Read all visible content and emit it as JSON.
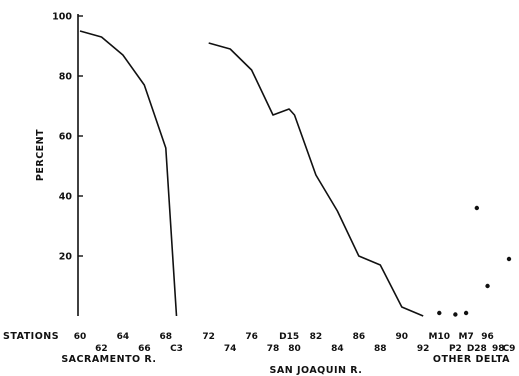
{
  "chart_data": {
    "type": "line",
    "xlabel": "STATIONS",
    "ylabel": "PERCENT",
    "ylim": [
      0,
      100
    ],
    "y_ticks": [
      "100",
      "80",
      "60",
      "40",
      "20"
    ],
    "y_tick_values": [
      100,
      80,
      60,
      40,
      20
    ],
    "x_ticks": [
      {
        "label": "60",
        "station": 60,
        "row": 1
      },
      {
        "label": "62",
        "station": 62,
        "row": 2
      },
      {
        "label": "64",
        "station": 64,
        "row": 1
      },
      {
        "label": "66",
        "station": 66,
        "row": 2
      },
      {
        "label": "68",
        "station": 68,
        "row": 1
      },
      {
        "label": "C3",
        "station": 69,
        "row": 2
      },
      {
        "label": "72",
        "station": 72,
        "row": 1
      },
      {
        "label": "74",
        "station": 74,
        "row": 2
      },
      {
        "label": "76",
        "station": 76,
        "row": 1
      },
      {
        "label": "78",
        "station": 78,
        "row": 2
      },
      {
        "label": "D15",
        "station": 79.5,
        "row": 1
      },
      {
        "label": "80",
        "station": 80,
        "row": 2
      },
      {
        "label": "82",
        "station": 82,
        "row": 1
      },
      {
        "label": "84",
        "station": 84,
        "row": 2
      },
      {
        "label": "86",
        "station": 86,
        "row": 1
      },
      {
        "label": "88",
        "station": 88,
        "row": 2
      },
      {
        "label": "90",
        "station": 90,
        "row": 1
      },
      {
        "label": "92",
        "station": 92,
        "row": 2
      },
      {
        "label": "M10",
        "station": 93.5,
        "row": 1
      },
      {
        "label": "P2",
        "station": 95,
        "row": 2
      },
      {
        "label": "M7",
        "station": 96,
        "row": 1
      },
      {
        "label": "D28",
        "station": 97,
        "row": 2
      },
      {
        "label": "96",
        "station": 98,
        "row": 1
      },
      {
        "label": "98",
        "station": 99,
        "row": 2
      },
      {
        "label": "C9",
        "station": 100,
        "row": 2
      }
    ],
    "groups": [
      {
        "name": "SACRAMENTO R.",
        "from": 60,
        "to": 69
      },
      {
        "name": "SAN JOAQUIN R.",
        "from": 72,
        "to": 92
      },
      {
        "name": "OTHER DELTA",
        "from": 93.5,
        "to": 100
      }
    ],
    "series": [
      {
        "group": "SACRAMENTO R.",
        "style": "line",
        "x": [
          60,
          62,
          64,
          66,
          68,
          69
        ],
        "y": [
          95,
          93,
          87,
          77,
          56,
          0
        ]
      },
      {
        "group": "SAN JOAQUIN R.",
        "style": "line",
        "x": [
          72,
          74,
          76,
          78,
          79.5,
          80,
          82,
          84,
          86,
          88,
          90,
          92
        ],
        "y": [
          91,
          89,
          82,
          67,
          69,
          67,
          47,
          35,
          20,
          17,
          3,
          0
        ]
      },
      {
        "group": "OTHER DELTA",
        "style": "points",
        "x": [
          93.5,
          95,
          96,
          97,
          98,
          100
        ],
        "y": [
          1,
          0.5,
          1,
          36,
          10,
          19
        ]
      }
    ]
  }
}
